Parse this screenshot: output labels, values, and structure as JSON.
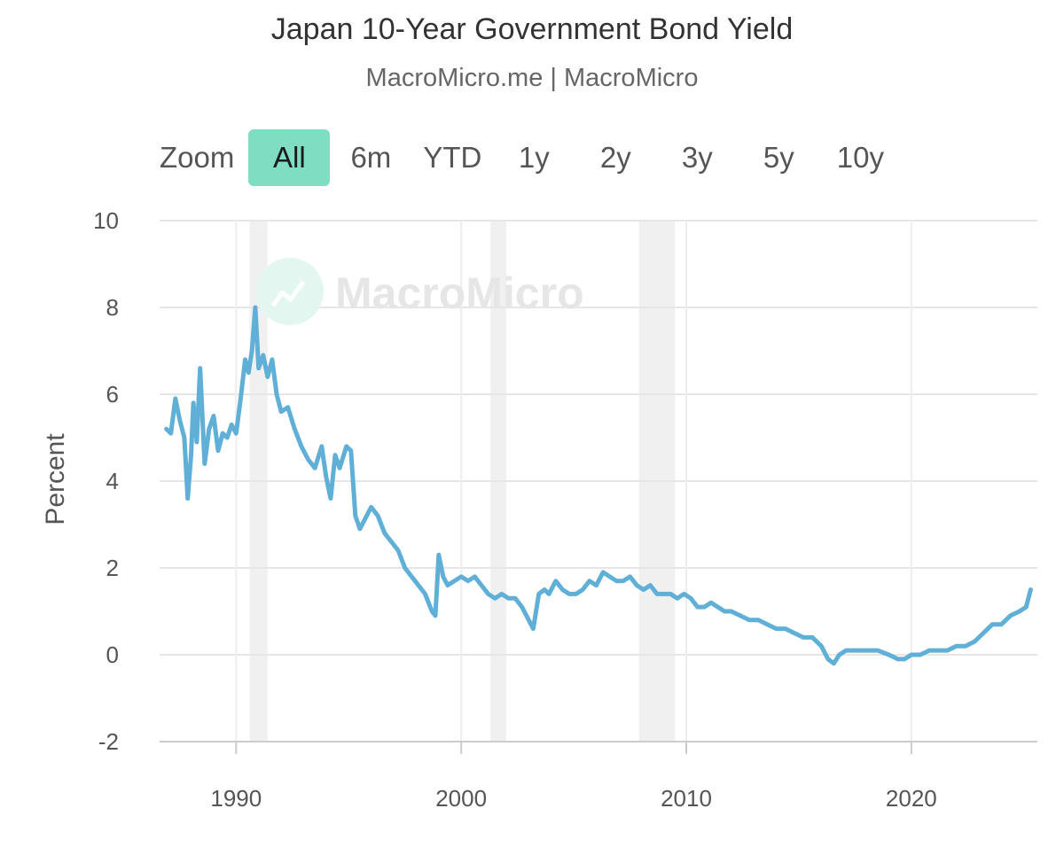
{
  "chart_data": {
    "type": "line",
    "title": "Japan 10-Year Government Bond Yield",
    "subtitle": "MacroMicro.me | MacroMicro",
    "ylabel": "Percent",
    "xlabel": "",
    "ylim": [
      -2,
      10
    ],
    "yticks": [
      "10",
      "8",
      "6",
      "4",
      "2",
      "0",
      "-2"
    ],
    "ytick_values": [
      10,
      8,
      6,
      4,
      2,
      0,
      -2
    ],
    "xlim": [
      1986.6,
      2025.6
    ],
    "xticks": [
      "1990",
      "2000",
      "2010",
      "2020"
    ],
    "xtick_values": [
      1990,
      2000,
      2010,
      2020
    ],
    "grid": true,
    "shaded_periods": [
      [
        1990.6,
        1991.4
      ],
      [
        2001.3,
        2002.0
      ],
      [
        2007.9,
        2009.5
      ]
    ],
    "series": [
      {
        "color": "#5fafd7",
        "x": [
          1986.9,
          1987.1,
          1987.3,
          1987.5,
          1987.7,
          1987.85,
          1988.0,
          1988.1,
          1988.25,
          1988.4,
          1988.6,
          1988.8,
          1989.0,
          1989.2,
          1989.4,
          1989.6,
          1989.8,
          1990.0,
          1990.2,
          1990.4,
          1990.55,
          1990.7,
          1990.85,
          1991.0,
          1991.2,
          1991.4,
          1991.6,
          1991.8,
          1992.0,
          1992.3,
          1992.6,
          1992.9,
          1993.2,
          1993.5,
          1993.8,
          1994.0,
          1994.2,
          1994.4,
          1994.6,
          1994.9,
          1995.1,
          1995.3,
          1995.5,
          1995.7,
          1996.0,
          1996.3,
          1996.6,
          1996.9,
          1997.2,
          1997.5,
          1997.8,
          1998.1,
          1998.4,
          1998.7,
          1998.85,
          1999.0,
          1999.2,
          1999.4,
          1999.7,
          2000.0,
          2000.3,
          2000.6,
          2000.9,
          2001.2,
          2001.5,
          2001.8,
          2002.1,
          2002.4,
          2002.7,
          2003.0,
          2003.2,
          2003.45,
          2003.7,
          2003.9,
          2004.2,
          2004.5,
          2004.8,
          2005.1,
          2005.4,
          2005.7,
          2006.0,
          2006.3,
          2006.6,
          2006.9,
          2007.2,
          2007.5,
          2007.8,
          2008.1,
          2008.4,
          2008.7,
          2009.0,
          2009.3,
          2009.6,
          2009.9,
          2010.2,
          2010.5,
          2010.8,
          2011.1,
          2011.4,
          2011.7,
          2012.0,
          2012.4,
          2012.8,
          2013.2,
          2013.6,
          2014.0,
          2014.4,
          2014.8,
          2015.2,
          2015.6,
          2016.0,
          2016.3,
          2016.55,
          2016.8,
          2017.1,
          2017.5,
          2018.0,
          2018.5,
          2019.0,
          2019.4,
          2019.7,
          2020.0,
          2020.4,
          2020.8,
          2021.2,
          2021.6,
          2022.0,
          2022.4,
          2022.8,
          2023.2,
          2023.6,
          2024.0,
          2024.4,
          2024.8,
          2025.1,
          2025.3
        ],
        "y": [
          5.2,
          5.1,
          5.9,
          5.4,
          5.0,
          3.6,
          4.6,
          5.8,
          4.9,
          6.6,
          4.4,
          5.2,
          5.5,
          4.7,
          5.1,
          5.0,
          5.3,
          5.1,
          5.9,
          6.8,
          6.5,
          7.0,
          8.0,
          6.6,
          6.9,
          6.4,
          6.8,
          6.0,
          5.6,
          5.7,
          5.2,
          4.8,
          4.5,
          4.3,
          4.8,
          4.1,
          3.6,
          4.6,
          4.3,
          4.8,
          4.7,
          3.2,
          2.9,
          3.1,
          3.4,
          3.2,
          2.8,
          2.6,
          2.4,
          2.0,
          1.8,
          1.6,
          1.4,
          1.0,
          0.9,
          2.3,
          1.8,
          1.6,
          1.7,
          1.8,
          1.7,
          1.8,
          1.6,
          1.4,
          1.3,
          1.4,
          1.3,
          1.3,
          1.1,
          0.8,
          0.6,
          1.4,
          1.5,
          1.4,
          1.7,
          1.5,
          1.4,
          1.4,
          1.5,
          1.7,
          1.6,
          1.9,
          1.8,
          1.7,
          1.7,
          1.8,
          1.6,
          1.5,
          1.6,
          1.4,
          1.4,
          1.4,
          1.3,
          1.4,
          1.3,
          1.1,
          1.1,
          1.2,
          1.1,
          1.0,
          1.0,
          0.9,
          0.8,
          0.8,
          0.7,
          0.6,
          0.6,
          0.5,
          0.4,
          0.4,
          0.2,
          -0.1,
          -0.2,
          0.0,
          0.1,
          0.1,
          0.1,
          0.1,
          0.0,
          -0.1,
          -0.1,
          0.0,
          0.0,
          0.1,
          0.1,
          0.1,
          0.2,
          0.2,
          0.3,
          0.5,
          0.7,
          0.7,
          0.9,
          1.0,
          1.1,
          1.5
        ]
      }
    ]
  },
  "zoom": {
    "label": "Zoom",
    "options": [
      "All",
      "6m",
      "YTD",
      "1y",
      "2y",
      "3y",
      "5y",
      "10y"
    ],
    "active": "All",
    "active_color": "#7fdec2"
  },
  "watermark": {
    "text": "MacroMicro",
    "icon": "chart-logo-icon"
  }
}
